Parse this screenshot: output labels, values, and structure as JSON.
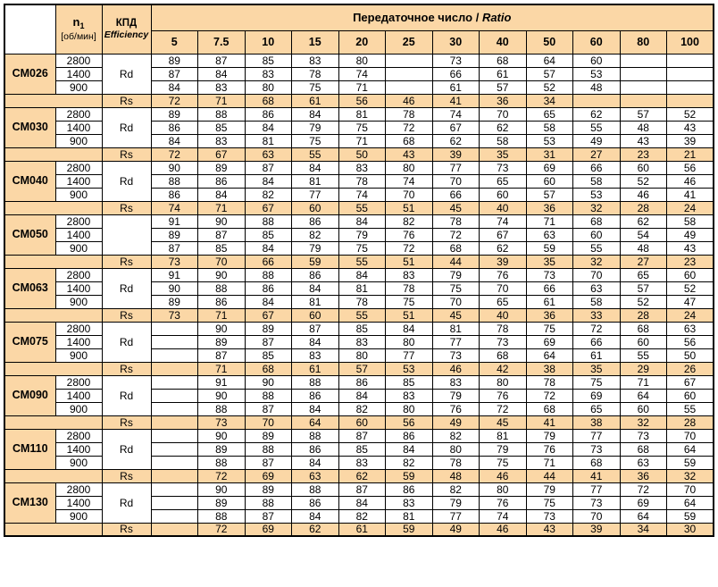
{
  "header": {
    "speed_symbol": "n",
    "speed_sub": "1",
    "speed_unit": "[об/мин]",
    "efficiency_ru": "КПД",
    "efficiency_en": "Efficiency",
    "ratio_title_ru": "Передаточное число /",
    "ratio_title_en": "Ratio",
    "ratios": [
      "5",
      "7.5",
      "10",
      "15",
      "20",
      "25",
      "30",
      "40",
      "50",
      "60",
      "80",
      "100"
    ]
  },
  "colors": {
    "shade": "#FBD7A6",
    "border": "#000000",
    "text": "#000000"
  },
  "models": [
    {
      "model": "CM026",
      "speeds": [
        "2800",
        "1400",
        "900"
      ],
      "rd_label": "Rd",
      "rs_label": "Rs",
      "rd": [
        [
          "89",
          "87",
          "85",
          "83",
          "80",
          "",
          "73",
          "68",
          "64",
          "60",
          "",
          ""
        ],
        [
          "87",
          "84",
          "83",
          "78",
          "74",
          "",
          "66",
          "61",
          "57",
          "53",
          "",
          ""
        ],
        [
          "84",
          "83",
          "80",
          "75",
          "71",
          "",
          "61",
          "57",
          "52",
          "48",
          "",
          ""
        ]
      ],
      "rs": [
        "72",
        "71",
        "68",
        "61",
        "56",
        "46",
        "41",
        "36",
        "34",
        "",
        "",
        ""
      ]
    },
    {
      "model": "CM030",
      "speeds": [
        "2800",
        "1400",
        "900"
      ],
      "rd_label": "Rd",
      "rs_label": "Rs",
      "rd": [
        [
          "89",
          "88",
          "86",
          "84",
          "81",
          "78",
          "74",
          "70",
          "65",
          "62",
          "57",
          "52"
        ],
        [
          "86",
          "85",
          "84",
          "79",
          "75",
          "72",
          "67",
          "62",
          "58",
          "55",
          "48",
          "43"
        ],
        [
          "84",
          "83",
          "81",
          "75",
          "71",
          "68",
          "62",
          "58",
          "53",
          "49",
          "43",
          "39"
        ]
      ],
      "rs": [
        "72",
        "67",
        "63",
        "55",
        "50",
        "43",
        "39",
        "35",
        "31",
        "27",
        "23",
        "21"
      ]
    },
    {
      "model": "CM040",
      "speeds": [
        "2800",
        "1400",
        "900"
      ],
      "rd_label": "Rd",
      "rs_label": "Rs",
      "rd": [
        [
          "90",
          "89",
          "87",
          "84",
          "83",
          "80",
          "77",
          "73",
          "69",
          "66",
          "60",
          "56"
        ],
        [
          "88",
          "86",
          "84",
          "81",
          "78",
          "74",
          "70",
          "65",
          "60",
          "58",
          "52",
          "46"
        ],
        [
          "86",
          "84",
          "82",
          "77",
          "74",
          "70",
          "66",
          "60",
          "57",
          "53",
          "46",
          "41"
        ]
      ],
      "rs": [
        "74",
        "71",
        "67",
        "60",
        "55",
        "51",
        "45",
        "40",
        "36",
        "32",
        "28",
        "24"
      ]
    },
    {
      "model": "CM050",
      "speeds": [
        "2800",
        "1400",
        "900"
      ],
      "rd_label": "",
      "rs_label": "Rs",
      "rd": [
        [
          "91",
          "90",
          "88",
          "86",
          "84",
          "82",
          "78",
          "74",
          "71",
          "68",
          "62",
          "58"
        ],
        [
          "89",
          "87",
          "85",
          "82",
          "79",
          "76",
          "72",
          "67",
          "63",
          "60",
          "54",
          "49"
        ],
        [
          "87",
          "85",
          "84",
          "79",
          "75",
          "72",
          "68",
          "62",
          "59",
          "55",
          "48",
          "43"
        ]
      ],
      "rs": [
        "73",
        "70",
        "66",
        "59",
        "55",
        "51",
        "44",
        "39",
        "35",
        "32",
        "27",
        "23"
      ]
    },
    {
      "model": "CM063",
      "speeds": [
        "2800",
        "1400",
        "900"
      ],
      "rd_label": "Rd",
      "rs_label": "Rs",
      "rd": [
        [
          "91",
          "90",
          "88",
          "86",
          "84",
          "83",
          "79",
          "76",
          "73",
          "70",
          "65",
          "60"
        ],
        [
          "90",
          "88",
          "86",
          "84",
          "81",
          "78",
          "75",
          "70",
          "66",
          "63",
          "57",
          "52"
        ],
        [
          "89",
          "86",
          "84",
          "81",
          "78",
          "75",
          "70",
          "65",
          "61",
          "58",
          "52",
          "47"
        ]
      ],
      "rs": [
        "73",
        "71",
        "67",
        "60",
        "55",
        "51",
        "45",
        "40",
        "36",
        "33",
        "28",
        "24"
      ]
    },
    {
      "model": "CM075",
      "speeds": [
        "2800",
        "1400",
        "900"
      ],
      "rd_label": "Rd",
      "rs_label": "Rs",
      "rd": [
        [
          "",
          "90",
          "89",
          "87",
          "85",
          "84",
          "81",
          "78",
          "75",
          "72",
          "68",
          "63"
        ],
        [
          "",
          "89",
          "87",
          "84",
          "83",
          "80",
          "77",
          "73",
          "69",
          "66",
          "60",
          "56"
        ],
        [
          "",
          "87",
          "85",
          "83",
          "80",
          "77",
          "73",
          "68",
          "64",
          "61",
          "55",
          "50"
        ]
      ],
      "rs": [
        "",
        "71",
        "68",
        "61",
        "57",
        "53",
        "46",
        "42",
        "38",
        "35",
        "29",
        "26"
      ]
    },
    {
      "model": "CM090",
      "speeds": [
        "2800",
        "1400",
        "900"
      ],
      "rd_label": "Rd",
      "rs_label": "Rs",
      "rd": [
        [
          "",
          "91",
          "90",
          "88",
          "86",
          "85",
          "83",
          "80",
          "78",
          "75",
          "71",
          "67"
        ],
        [
          "",
          "90",
          "88",
          "86",
          "84",
          "83",
          "79",
          "76",
          "72",
          "69",
          "64",
          "60"
        ],
        [
          "",
          "88",
          "87",
          "84",
          "82",
          "80",
          "76",
          "72",
          "68",
          "65",
          "60",
          "55"
        ]
      ],
      "rs": [
        "",
        "73",
        "70",
        "64",
        "60",
        "56",
        "49",
        "45",
        "41",
        "38",
        "32",
        "28"
      ]
    },
    {
      "model": "CM110",
      "speeds": [
        "2800",
        "1400",
        "900"
      ],
      "rd_label": "Rd",
      "rs_label": "Rs",
      "rd": [
        [
          "",
          "90",
          "89",
          "88",
          "87",
          "86",
          "82",
          "81",
          "79",
          "77",
          "73",
          "70"
        ],
        [
          "",
          "89",
          "88",
          "86",
          "85",
          "84",
          "80",
          "79",
          "76",
          "73",
          "68",
          "64"
        ],
        [
          "",
          "88",
          "87",
          "84",
          "83",
          "82",
          "78",
          "75",
          "71",
          "68",
          "63",
          "59"
        ]
      ],
      "rs": [
        "",
        "72",
        "69",
        "63",
        "62",
        "59",
        "48",
        "46",
        "44",
        "41",
        "36",
        "32"
      ]
    },
    {
      "model": "CM130",
      "speeds": [
        "2800",
        "1400",
        "900"
      ],
      "rd_label": "Rd",
      "rs_label": "Rs",
      "rd": [
        [
          "",
          "90",
          "89",
          "88",
          "87",
          "86",
          "82",
          "80",
          "79",
          "77",
          "72",
          "70"
        ],
        [
          "",
          "89",
          "88",
          "86",
          "84",
          "83",
          "79",
          "76",
          "75",
          "73",
          "69",
          "64"
        ],
        [
          "",
          "88",
          "87",
          "84",
          "82",
          "81",
          "77",
          "74",
          "73",
          "70",
          "64",
          "59"
        ]
      ],
      "rs": [
        "",
        "72",
        "69",
        "62",
        "61",
        "59",
        "49",
        "46",
        "43",
        "39",
        "34",
        "30"
      ]
    }
  ]
}
